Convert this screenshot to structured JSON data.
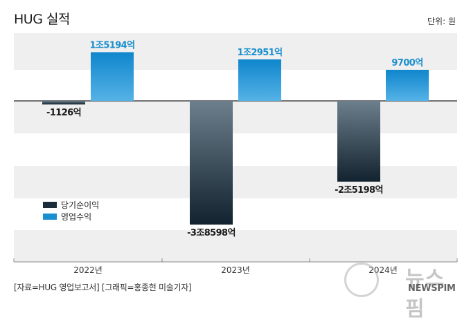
{
  "title": "HUG 실적",
  "unit_label": "단위: 원",
  "source": "[자료=HUG 영업보고서] [그래픽=홍종현 미술기자]",
  "watermark": {
    "text": "뉴스핌",
    "brand": "NEWSPIM"
  },
  "colors": {
    "net_income": "#1b2d3a",
    "operating_revenue": "#1a8fcf",
    "band": "#efefef"
  },
  "chart_data": {
    "type": "bar",
    "title": "HUG 실적",
    "xlabel": "",
    "ylabel": "",
    "unit": "원",
    "categories": [
      "2022년",
      "2023년",
      "2024년"
    ],
    "ylim": [
      -45000,
      20000
    ],
    "grid": false,
    "legend_position": "bottom-left",
    "series": [
      {
        "name": "당기순이익",
        "values": [
          -1126,
          -38598,
          -25198
        ],
        "labels": [
          "-1126억",
          "-3조8598억",
          "-2조5198억"
        ],
        "color": "#1b2d3a"
      },
      {
        "name": "영업수익",
        "values": [
          15194,
          12951,
          9700
        ],
        "labels": [
          "1조5194억",
          "1조2951억",
          "9700억"
        ],
        "color": "#1a8fcf"
      }
    ]
  }
}
